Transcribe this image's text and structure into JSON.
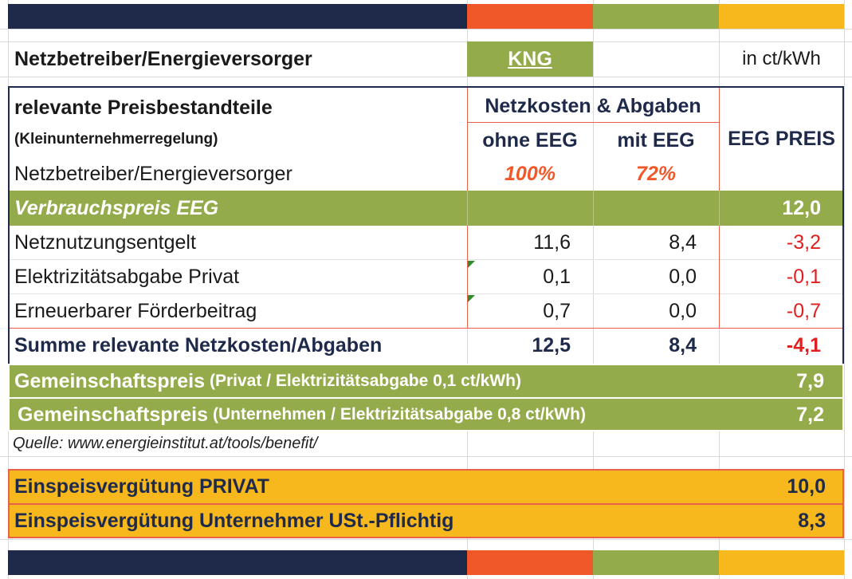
{
  "colors": {
    "navy": "#1f2a4a",
    "orange": "#f0582a",
    "green": "#94ab4c",
    "yellow": "#f6b81c",
    "accent_red": "#e8614a",
    "negative": "#e02020"
  },
  "header": {
    "operator_label": "Netzbetreiber/Energieversorger",
    "operator_value": "KNG",
    "unit": "in ct/kWh"
  },
  "table": {
    "title": "relevante Preisbestandteile",
    "subtitle": "(Kleinunternehmerregelung)",
    "group_header": "Netzkosten & Abgaben",
    "col_ohne": "ohne EEG",
    "col_mit": "mit EEG",
    "col_eeg": "EEG PREIS",
    "operator_row_label": "Netzbetreiber/Energieversorger",
    "pct_ohne": "100%",
    "pct_mit": "72%",
    "verbrauch_label": "Verbrauchspreis EEG",
    "verbrauch_value": "12,0",
    "rows": [
      {
        "label": "Netznutzungsentgelt",
        "ohne": "11,6",
        "mit": "8,4",
        "eeg": "-3,2"
      },
      {
        "label": "Elektrizitätsabgabe Privat",
        "ohne": "0,1",
        "mit": "0,0",
        "eeg": "-0,1"
      },
      {
        "label": "Erneuerbarer Förderbeitrag",
        "ohne": "0,7",
        "mit": "0,0",
        "eeg": "-0,7"
      }
    ],
    "sum": {
      "label": "Summe relevante Netzkosten/Abgaben",
      "ohne": "12,5",
      "mit": "8,4",
      "eeg": "-4,1"
    }
  },
  "community": [
    {
      "main": "Gemeinschaftspreis",
      "detail": "(Privat / Elektrizitätsabgabe 0,1 ct/kWh)",
      "value": "7,9"
    },
    {
      "main": "Gemeinschaftspreis",
      "detail": "(Unternehmen / Elektrizitätsabgabe 0,8 ct/kWh)",
      "value": "7,2"
    }
  ],
  "source": "Quelle: www.energieinstitut.at/tools/benefit/",
  "feedin": [
    {
      "label": "Einspeisvergütung PRIVAT",
      "value": "10,0"
    },
    {
      "label": "Einspeisvergütung Unternehmer USt.-Pflichtig",
      "value": "8,3"
    }
  ]
}
